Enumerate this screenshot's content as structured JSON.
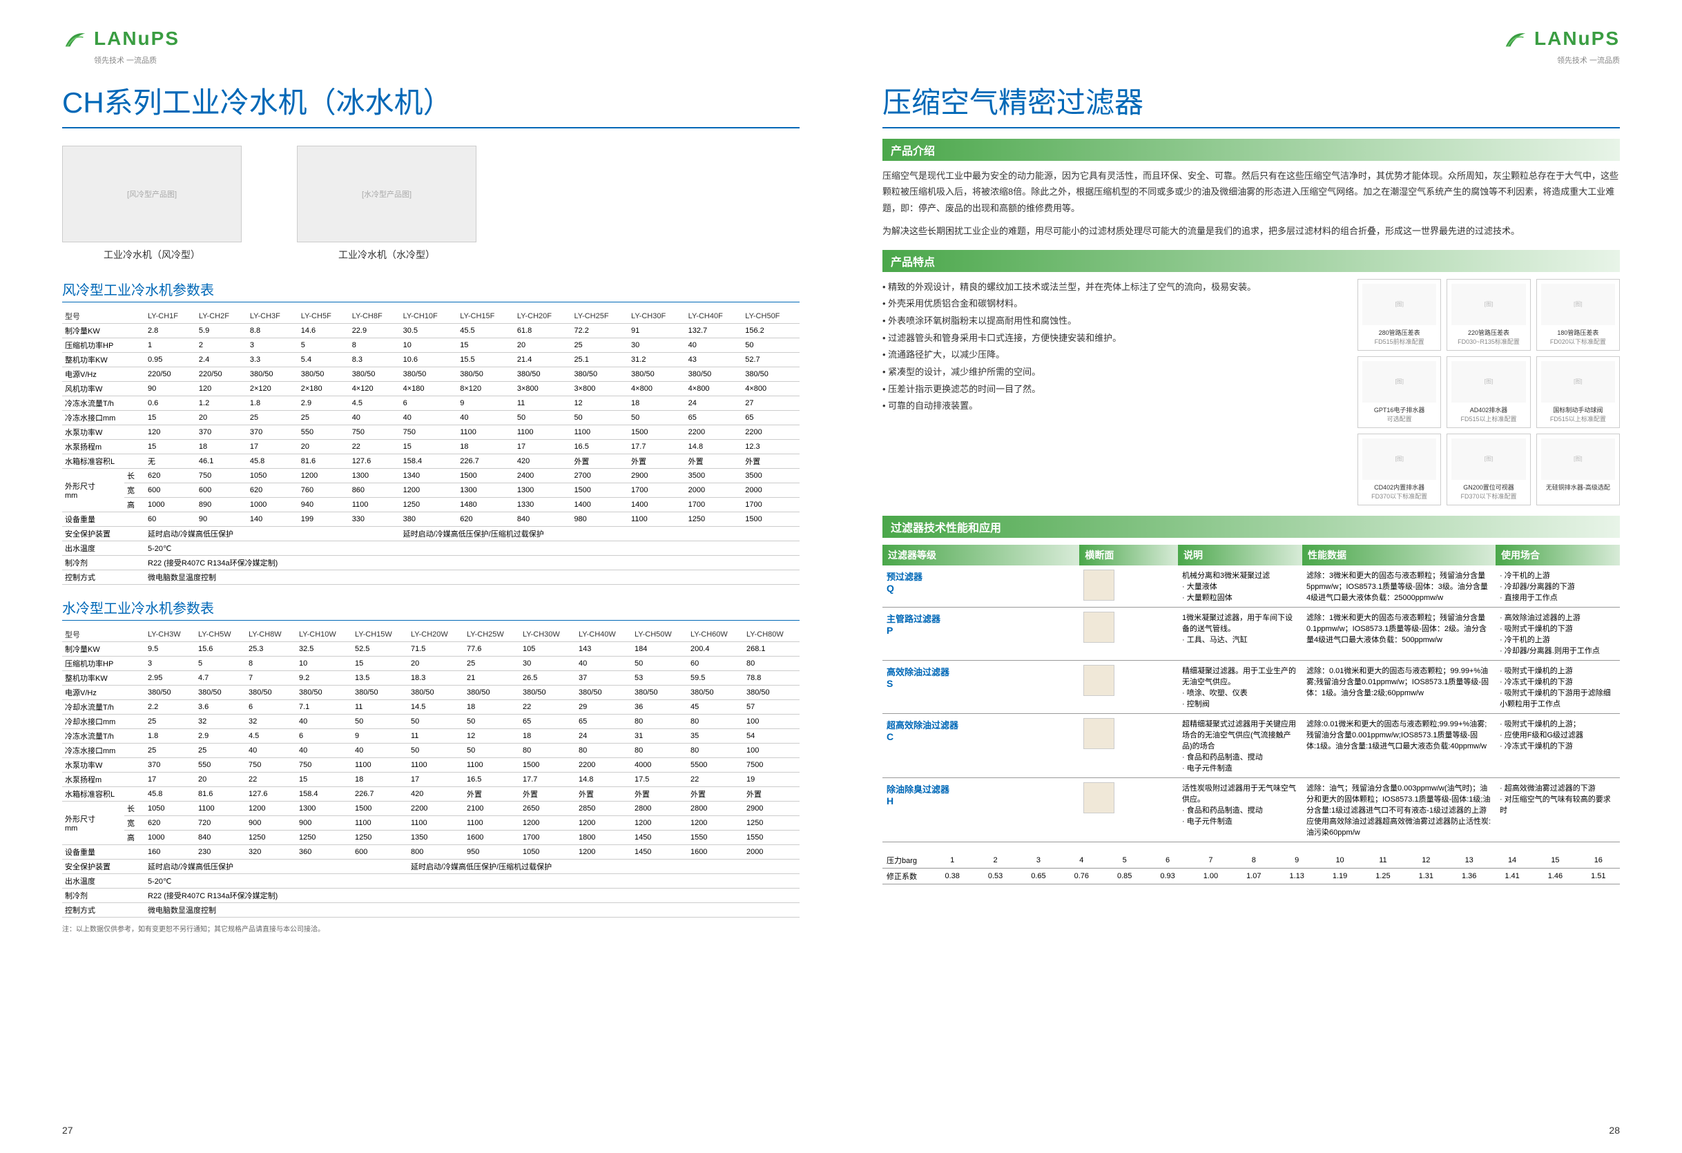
{
  "brand": {
    "name": "LANuPS",
    "tagline": "领先技术 一流品质",
    "logo_color": "#3a9d42"
  },
  "left": {
    "title": "CH系列工业冷水机（冰水机）",
    "img1_caption": "工业冷水机（风冷型）",
    "img2_caption": "工业冷水机（水冷型）",
    "table1_title": "风冷型工业冷水机参数表",
    "table2_title": "水冷型工业冷水机参数表",
    "table1": {
      "header": [
        "型号",
        "LY-CH1F",
        "LY-CH2F",
        "LY-CH3F",
        "LY-CH5F",
        "LY-CH8F",
        "LY-CH10F",
        "LY-CH15F",
        "LY-CH20F",
        "LY-CH25F",
        "LY-CH30F",
        "LY-CH40F",
        "LY-CH50F"
      ],
      "rows": [
        [
          "制冷量KW",
          "2.8",
          "5.9",
          "8.8",
          "14.6",
          "22.9",
          "30.5",
          "45.5",
          "61.8",
          "72.2",
          "91",
          "132.7",
          "156.2"
        ],
        [
          "压缩机功率HP",
          "1",
          "2",
          "3",
          "5",
          "8",
          "10",
          "15",
          "20",
          "25",
          "30",
          "40",
          "50"
        ],
        [
          "整机功率KW",
          "0.95",
          "2.4",
          "3.3",
          "5.4",
          "8.3",
          "10.6",
          "15.5",
          "21.4",
          "25.1",
          "31.2",
          "43",
          "52.7"
        ],
        [
          "电源V/Hz",
          "220/50",
          "220/50",
          "380/50",
          "380/50",
          "380/50",
          "380/50",
          "380/50",
          "380/50",
          "380/50",
          "380/50",
          "380/50",
          "380/50"
        ],
        [
          "风机功率W",
          "90",
          "120",
          "2×120",
          "2×180",
          "4×120",
          "4×180",
          "8×120",
          "3×800",
          "3×800",
          "4×800",
          "4×800",
          "4×800"
        ],
        [
          "冷冻水流量T/h",
          "0.6",
          "1.2",
          "1.8",
          "2.9",
          "4.5",
          "6",
          "9",
          "11",
          "12",
          "18",
          "24",
          "27"
        ],
        [
          "冷冻水接口mm",
          "15",
          "20",
          "25",
          "25",
          "40",
          "40",
          "40",
          "50",
          "50",
          "50",
          "65",
          "65"
        ],
        [
          "水泵功率W",
          "120",
          "370",
          "370",
          "550",
          "750",
          "750",
          "1100",
          "1100",
          "1100",
          "1500",
          "2200",
          "2200"
        ],
        [
          "水泵扬程m",
          "15",
          "18",
          "17",
          "20",
          "22",
          "15",
          "18",
          "17",
          "16.5",
          "17.7",
          "14.8",
          "12.3"
        ],
        [
          "水箱标准容积L",
          "无",
          "46.1",
          "45.8",
          "81.6",
          "127.6",
          "158.4",
          "226.7",
          "420",
          "外置",
          "外置",
          "外置",
          "外置"
        ]
      ],
      "dim_label": "外形尺寸\nmm",
      "dim_rows": [
        [
          "长",
          "620",
          "750",
          "1050",
          "1200",
          "1300",
          "1340",
          "1500",
          "2400",
          "2700",
          "2900",
          "3500",
          "3500"
        ],
        [
          "宽",
          "600",
          "600",
          "620",
          "760",
          "860",
          "1200",
          "1300",
          "1300",
          "1500",
          "1700",
          "2000",
          "2000"
        ],
        [
          "高",
          "1000",
          "890",
          "1000",
          "940",
          "1100",
          "1250",
          "1480",
          "1330",
          "1400",
          "1400",
          "1700",
          "1700"
        ]
      ],
      "rows2": [
        [
          "设备重量",
          "60",
          "90",
          "140",
          "199",
          "330",
          "380",
          "620",
          "840",
          "980",
          "1100",
          "1250",
          "1500"
        ],
        [
          "安全保护装置",
          "延时启动/冷媒高低压保护",
          "",
          "",
          "",
          "",
          "延时启动/冷媒高低压保护/压缩机过载保护",
          "",
          "",
          "",
          "",
          "",
          ""
        ],
        [
          "出水温度",
          "5-20℃",
          "",
          "",
          "",
          "",
          "",
          "",
          "",
          "",
          "",
          "",
          ""
        ],
        [
          "制冷剂",
          "R22 (接受R407C  R134a环保冷媒定制)",
          "",
          "",
          "",
          "",
          "",
          "",
          "",
          "",
          "",
          "",
          ""
        ],
        [
          "控制方式",
          "微电脑数显温度控制",
          "",
          "",
          "",
          "",
          "",
          "",
          "",
          "",
          "",
          "",
          ""
        ]
      ]
    },
    "table2": {
      "header": [
        "型号",
        "LY-CH3W",
        "LY-CH5W",
        "LY-CH8W",
        "LY-CH10W",
        "LY-CH15W",
        "LY-CH20W",
        "LY-CH25W",
        "LY-CH30W",
        "LY-CH40W",
        "LY-CH50W",
        "LY-CH60W",
        "LY-CH80W"
      ],
      "rows": [
        [
          "制冷量KW",
          "9.5",
          "15.6",
          "25.3",
          "32.5",
          "52.5",
          "71.5",
          "77.6",
          "105",
          "143",
          "184",
          "200.4",
          "268.1"
        ],
        [
          "压缩机功率HP",
          "3",
          "5",
          "8",
          "10",
          "15",
          "20",
          "25",
          "30",
          "40",
          "50",
          "60",
          "80"
        ],
        [
          "整机功率KW",
          "2.95",
          "4.7",
          "7",
          "9.2",
          "13.5",
          "18.3",
          "21",
          "26.5",
          "37",
          "53",
          "59.5",
          "78.8"
        ],
        [
          "电源V/Hz",
          "380/50",
          "380/50",
          "380/50",
          "380/50",
          "380/50",
          "380/50",
          "380/50",
          "380/50",
          "380/50",
          "380/50",
          "380/50",
          "380/50"
        ],
        [
          "冷却水流量T/h",
          "2.2",
          "3.6",
          "6",
          "7.1",
          "11",
          "14.5",
          "18",
          "22",
          "29",
          "36",
          "45",
          "57"
        ],
        [
          "冷却水接口mm",
          "25",
          "32",
          "32",
          "40",
          "50",
          "50",
          "50",
          "65",
          "65",
          "80",
          "80",
          "100"
        ],
        [
          "冷冻水流量T/h",
          "1.8",
          "2.9",
          "4.5",
          "6",
          "9",
          "11",
          "12",
          "18",
          "24",
          "31",
          "35",
          "54"
        ],
        [
          "冷冻水接口mm",
          "25",
          "25",
          "40",
          "40",
          "40",
          "50",
          "50",
          "80",
          "80",
          "80",
          "80",
          "100"
        ],
        [
          "水泵功率W",
          "370",
          "550",
          "750",
          "750",
          "1100",
          "1100",
          "1100",
          "1500",
          "2200",
          "4000",
          "5500",
          "7500"
        ],
        [
          "水泵扬程m",
          "17",
          "20",
          "22",
          "15",
          "18",
          "17",
          "16.5",
          "17.7",
          "14.8",
          "17.5",
          "22",
          "19"
        ],
        [
          "水箱标准容积L",
          "45.8",
          "81.6",
          "127.6",
          "158.4",
          "226.7",
          "420",
          "外置",
          "外置",
          "外置",
          "外置",
          "外置",
          "外置"
        ]
      ],
      "dim_label": "外形尺寸\nmm",
      "dim_rows": [
        [
          "长",
          "1050",
          "1100",
          "1200",
          "1300",
          "1500",
          "2200",
          "2100",
          "2650",
          "2850",
          "2800",
          "2800",
          "2900"
        ],
        [
          "宽",
          "620",
          "720",
          "900",
          "900",
          "1100",
          "1100",
          "1100",
          "1200",
          "1200",
          "1200",
          "1200",
          "1250"
        ],
        [
          "高",
          "1000",
          "840",
          "1250",
          "1250",
          "1250",
          "1350",
          "1600",
          "1700",
          "1800",
          "1450",
          "1550",
          "1550"
        ]
      ],
      "rows2": [
        [
          "设备重量",
          "160",
          "230",
          "320",
          "360",
          "600",
          "800",
          "950",
          "1050",
          "1200",
          "1450",
          "1600",
          "2000"
        ],
        [
          "安全保护装置",
          "延时启动/冷媒高低压保护",
          "",
          "",
          "",
          "",
          "延时启动/冷媒高低压保护/压缩机过载保护",
          "",
          "",
          "",
          "",
          "",
          ""
        ],
        [
          "出水温度",
          "5-20℃",
          "",
          "",
          "",
          "",
          "",
          "",
          "",
          "",
          "",
          "",
          ""
        ],
        [
          "制冷剂",
          "R22 (接受R407C  R134a环保冷媒定制)",
          "",
          "",
          "",
          "",
          "",
          "",
          "",
          "",
          "",
          "",
          ""
        ],
        [
          "控制方式",
          "微电脑数显温度控制",
          "",
          "",
          "",
          "",
          "",
          "",
          "",
          "",
          "",
          "",
          ""
        ]
      ]
    },
    "note": "注：以上数据仅供参考，如有变更恕不另行通知；其它规格产品请直接与本公司接洽。",
    "page_num": "27"
  },
  "right": {
    "title": "压缩空气精密过滤器",
    "sec1_title": "产品介绍",
    "intro": [
      "压缩空气是现代工业中最为安全的动力能源，因为它具有灵活性，而且环保、安全、可靠。然后只有在这些压缩空气洁净时，其优势才能体现。众所周知，灰尘颗粒总存在于大气中，这些颗粒被压缩机吸入后，将被浓缩8倍。除此之外，根据压缩机型的不同或多或少的油及微细油雾的形态进入压缩空气网络。加之在潮湿空气系统产生的腐蚀等不利因素，将造成重大工业难题，即：停产、废品的出现和高额的维修费用等。",
      "为解决这些长期困扰工业企业的难题，用尽可能小的过滤材质处理尽可能大的流量是我们的追求，把多层过滤材料的组合折叠，形成这一世界最先进的过滤技术。"
    ],
    "sec2_title": "产品特点",
    "features": [
      "精致的外观设计，精良的螺纹加工技术或法兰型，并在壳体上标注了空气的流向，极易安装。",
      "外壳采用优质铝合金和碳钢材料。",
      "外表喷涂环氧树脂粉末以提高耐用性和腐蚀性。",
      "过滤器管头和管身采用卡口式连接，方便快捷安装和维护。",
      "流通路径扩大，以减少压降。",
      "紧凑型的设计，减少维护所需的空间。",
      "压差计指示更换滤芯的时间一目了然。",
      "可靠的自动排液装置。"
    ],
    "accessories": [
      {
        "name": "280管路压差表",
        "code": "FD515前标准配置"
      },
      {
        "name": "220管路压差表",
        "code": "FD030~R135标准配置"
      },
      {
        "name": "180管路压差表",
        "code": "FD020以下标准配置"
      },
      {
        "name": "GPT16电子排水器",
        "code": "可选配置"
      },
      {
        "name": "AD402排水器",
        "code": "FD515以上标准配置"
      },
      {
        "name": "国标制动手动球阀",
        "code": "FD515以上标准配置"
      },
      {
        "name": "CD402内置排水器",
        "code": "FD370以下标准配置"
      },
      {
        "name": "GN200置位可视器",
        "code": "FD370以下标准配置"
      },
      {
        "name": "无硅铜排水器-高级选配",
        "code": ""
      }
    ],
    "sec3_title": "过滤器技术性能和应用",
    "filter_table": {
      "headers": [
        "过滤器等级",
        "横断面",
        "说明",
        "性能数据",
        "使用场合"
      ],
      "rows": [
        {
          "grade": "预过滤器",
          "letter": "Q",
          "desc": "机械分离和3微米凝聚过滤\n· 大量液体\n· 大量颗粒固体",
          "perf": "滤除：3微米和更大的固态与液态颗粒；残留油分含量5ppmw/w；IOS8573.1质量等级-固体：3级。油分含量4级进气口最大液体负载：25000ppmw/w",
          "use": "· 冷干机的上游\n· 冷却器/分离器的下游\n· 直接用于工作点"
        },
        {
          "grade": "主管路过滤器",
          "letter": "P",
          "desc": "1微米凝聚过滤器，用于车间下设备的送气管线。\n· 工具、马达、汽缸",
          "perf": "滤除：1微米和更大的固态与液态颗粒；残留油分含量0.1ppmw/w；IOS8573.1质量等级-固体：2级。油分含量4级进气口最大液体负载：500ppmw/w",
          "use": "· 高效除油过滤器的上游\n· 吸附式干燥机的下游\n· 冷干机的上游\n· 冷却器/分离器.则用于工作点"
        },
        {
          "grade": "高效除油过滤器",
          "letter": "S",
          "desc": "精细凝聚过滤器。用于工业生产的无油空气供应。\n· 喷涂、吹塑、仪表\n· 控制阀",
          "perf": "滤除：0.01微米和更大的固态与液态颗粒；99.99+%油雾;残留油分含量0.01ppmw/w；IOS8573.1质量等级-固体：1级。油分含量:2级;60ppmw/w",
          "use": "· 吸附式干燥机的上游\n· 冷冻式干燥机的下游\n· 吸附式干燥机的下游用于滤除细小颗粒用于工作点"
        },
        {
          "grade": "超高效除油过滤器",
          "letter": "C",
          "desc": "超精细凝聚式过滤器用于关键应用场合的无油空气供应(气流接触产品)的场合\n· 食品和药品制造、搅动\n· 电子元件制造",
          "perf": "滤除:0.01微米和更大的固态与液态颗粒;99.99+%油雾;残留油分含量0.001ppmw/w;IOS8573.1质量等级-固体:1级。油分含量:1级进气口最大液态负载:40ppmw/w",
          "use": "· 吸附式干燥机的上游；\n· 应使用F级和G级过滤器\n· 冷冻式干燥机的下游"
        },
        {
          "grade": "除油除臭过滤器",
          "letter": "H",
          "desc": "活性炭吸附过滤器用于无气味空气供应。\n· 食品和药品制造、搅动\n· 电子元件制造",
          "perf": "滤除：油气；残留油分含量0.003ppmw/w(油气时)；油分和更大的固体颗粒；IOS8573.1质量等级-固体:1级;油分含量:1级过滤器进气口不可有液态-1级过滤器的上游应使用高效除油过滤器超高效微油雾过滤器防止活性炭:油污染60ppm/w",
          "use": "· 超高效微油雾过滤器的下游\n· 对压缩空气的气味有较高的要求时"
        }
      ]
    },
    "pressure": {
      "label1": "压力barg",
      "values1": [
        "1",
        "2",
        "3",
        "4",
        "5",
        "6",
        "7",
        "8",
        "9",
        "10",
        "11",
        "12",
        "13",
        "14",
        "15",
        "16"
      ],
      "label2": "修正系数",
      "values2": [
        "0.38",
        "0.53",
        "0.65",
        "0.76",
        "0.85",
        "0.93",
        "1.00",
        "1.07",
        "1.13",
        "1.19",
        "1.25",
        "1.31",
        "1.36",
        "1.41",
        "1.46",
        "1.51"
      ]
    },
    "page_num": "28"
  }
}
